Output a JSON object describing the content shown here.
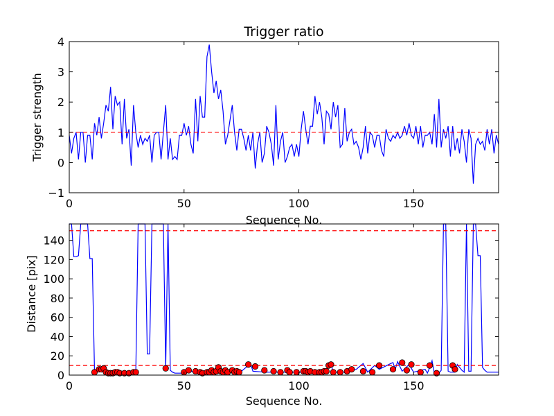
{
  "figure": {
    "background": "#ffffff"
  },
  "chart_data": [
    {
      "type": "line",
      "title": "Trigger ratio",
      "xlabel": "Sequence No.",
      "ylabel": "Trigger strength",
      "xlim": [
        0,
        187
      ],
      "ylim": [
        -1,
        4
      ],
      "xticks": [
        0,
        50,
        100,
        150
      ],
      "yticks": [
        -1,
        0,
        1,
        2,
        3,
        4
      ],
      "ytick_labels": [
        "−1",
        "0",
        "1",
        "2",
        "3",
        "4"
      ],
      "grid": false,
      "reference_lines": [
        {
          "y": 1,
          "style": "dashed",
          "color": "#ff0000"
        }
      ],
      "series": [
        {
          "color": "#0000ff",
          "x_start": 0,
          "values": [
            0.9,
            0.3,
            0.8,
            1.0,
            0.1,
            1.0,
            1.0,
            0.0,
            0.9,
            0.9,
            0.1,
            1.3,
            0.9,
            1.5,
            0.8,
            1.3,
            1.9,
            1.7,
            2.5,
            1.1,
            2.2,
            1.9,
            2.0,
            0.6,
            2.1,
            0.8,
            1.1,
            -0.1,
            1.9,
            1.0,
            0.5,
            0.9,
            0.6,
            0.8,
            0.7,
            0.9,
            0.0,
            0.9,
            1.0,
            1.0,
            0.1,
            1.0,
            1.9,
            0.1,
            0.8,
            0.1,
            0.2,
            0.1,
            0.9,
            0.9,
            1.3,
            0.9,
            1.2,
            0.6,
            0.3,
            2.1,
            0.7,
            2.2,
            1.5,
            1.5,
            3.5,
            3.9,
            3.0,
            2.3,
            2.7,
            2.1,
            2.4,
            1.7,
            0.6,
            0.9,
            1.4,
            1.9,
            1.0,
            0.4,
            1.1,
            1.1,
            0.8,
            0.4,
            0.9,
            0.4,
            1.0,
            -0.2,
            0.6,
            1.0,
            0.0,
            0.3,
            1.2,
            1.0,
            0.6,
            -0.1,
            1.9,
            0.1,
            0.7,
            1.0,
            0.0,
            0.2,
            0.5,
            0.6,
            0.2,
            0.6,
            0.2,
            1.1,
            1.7,
            1.1,
            0.6,
            1.2,
            1.2,
            2.2,
            1.6,
            2.0,
            1.5,
            0.6,
            1.7,
            1.6,
            1.1,
            2.0,
            1.5,
            1.9,
            0.5,
            0.6,
            1.8,
            0.7,
            1.0,
            1.1,
            0.6,
            0.7,
            0.5,
            0.1,
            0.5,
            1.2,
            0.3,
            1.0,
            0.9,
            0.5,
            0.9,
            0.9,
            0.4,
            0.2,
            1.1,
            0.8,
            0.7,
            0.9,
            0.8,
            1.0,
            0.8,
            0.9,
            1.2,
            0.9,
            1.3,
            0.9,
            0.8,
            1.2,
            0.6,
            1.2,
            0.5,
            0.9,
            0.9,
            1.0,
            0.6,
            1.6,
            0.5,
            2.1,
            0.5,
            1.1,
            0.8,
            1.2,
            0.2,
            1.2,
            0.4,
            0.8,
            0.3,
            1.1,
            0.7,
            0.0,
            1.1,
            0.8,
            -0.7,
            0.6,
            0.8,
            0.6,
            0.7,
            0.4,
            1.1,
            0.6,
            1.1,
            0.3,
            0.9,
            0.6
          ]
        }
      ]
    },
    {
      "type": "line",
      "title": "",
      "xlabel": "Sequence No.",
      "ylabel": "Distance [pix]",
      "xlim": [
        0,
        187
      ],
      "ylim": [
        0,
        157
      ],
      "xticks": [
        0,
        50,
        100,
        150
      ],
      "yticks": [
        0,
        20,
        40,
        60,
        80,
        100,
        120,
        140
      ],
      "ytick_labels": [
        "0",
        "20",
        "40",
        "60",
        "80",
        "100",
        "120",
        "140"
      ],
      "grid": false,
      "reference_lines": [
        {
          "y": 150,
          "style": "dashed",
          "color": "#ff0000"
        },
        {
          "y": 10,
          "style": "dashed",
          "color": "#ff0000"
        }
      ],
      "series": [
        {
          "color": "#0000ff",
          "x": [
            0,
            1,
            2,
            3,
            4,
            5,
            6,
            7,
            8,
            9,
            10,
            11,
            12,
            13,
            14,
            15,
            16,
            17,
            18,
            19,
            20,
            21,
            22,
            23,
            24,
            25,
            26,
            27,
            28,
            29,
            30,
            31,
            32,
            33,
            34,
            35,
            36,
            37,
            38,
            39,
            40,
            41,
            42,
            43,
            44,
            45,
            46,
            47,
            48,
            49,
            50,
            55,
            60,
            65,
            70,
            75,
            78,
            79,
            80,
            85,
            90,
            95,
            100,
            105,
            110,
            112,
            113,
            114,
            115,
            120,
            125,
            128,
            130,
            133,
            135,
            140,
            141,
            142,
            143,
            145,
            148,
            150,
            155,
            156,
            157,
            158,
            159,
            160,
            161,
            162,
            163,
            164,
            165,
            166,
            167,
            168,
            169,
            170,
            171,
            172,
            173,
            174,
            175,
            176,
            177,
            178,
            179,
            180,
            181,
            182,
            183,
            184,
            185,
            186,
            187
          ],
          "y": [
            157,
            157,
            123,
            123,
            124,
            157,
            157,
            157,
            157,
            121,
            121,
            3,
            5,
            7,
            7,
            8,
            3,
            2,
            2,
            2,
            3,
            2,
            2,
            2,
            2,
            2,
            2,
            3,
            3,
            3,
            157,
            157,
            157,
            157,
            22,
            22,
            157,
            157,
            157,
            157,
            157,
            157,
            7,
            157,
            5,
            3,
            2,
            2,
            2,
            2,
            3,
            4,
            3,
            5,
            3,
            4,
            10,
            12,
            4,
            3,
            3,
            3,
            3,
            3,
            3,
            4,
            10,
            11,
            3,
            3,
            6,
            12,
            3,
            10,
            6,
            12,
            13,
            6,
            14,
            4,
            11,
            3,
            6,
            2,
            8,
            15,
            2,
            2,
            2,
            5,
            157,
            157,
            4,
            3,
            3,
            3,
            11,
            8,
            5,
            3,
            157,
            4,
            4,
            157,
            157,
            124,
            124,
            8,
            5,
            3,
            3,
            3,
            3,
            3,
            3
          ]
        }
      ],
      "markers": {
        "color": "#ff0000",
        "x": [
          11,
          13,
          14,
          15,
          16,
          17,
          18,
          19,
          20,
          21,
          22,
          24,
          26,
          28,
          29,
          42,
          50,
          52,
          55,
          57,
          58,
          60,
          61,
          62,
          63,
          64,
          65,
          66,
          67,
          68,
          69,
          71,
          72,
          73,
          74,
          78,
          81,
          85,
          89,
          92,
          95,
          96,
          99,
          102,
          103,
          104,
          105,
          107,
          109,
          110,
          111,
          112,
          113,
          114,
          115,
          118,
          121,
          123,
          128,
          132,
          135,
          141,
          145,
          147,
          149,
          153,
          157,
          160,
          167,
          168
        ],
        "y": [
          3,
          6,
          6,
          7,
          3,
          2,
          2,
          2,
          3,
          3,
          2,
          2,
          2,
          3,
          3,
          7,
          3,
          5,
          4,
          3,
          2,
          3,
          3,
          5,
          3,
          4,
          8,
          4,
          3,
          5,
          3,
          5,
          3,
          4,
          3,
          11,
          9,
          5,
          4,
          3,
          5,
          3,
          3,
          4,
          4,
          3,
          4,
          3,
          3,
          3,
          4,
          4,
          10,
          11,
          3,
          3,
          4,
          6,
          4,
          3,
          10,
          6,
          13,
          5,
          11,
          3,
          10,
          2,
          10,
          6
        ]
      }
    }
  ]
}
